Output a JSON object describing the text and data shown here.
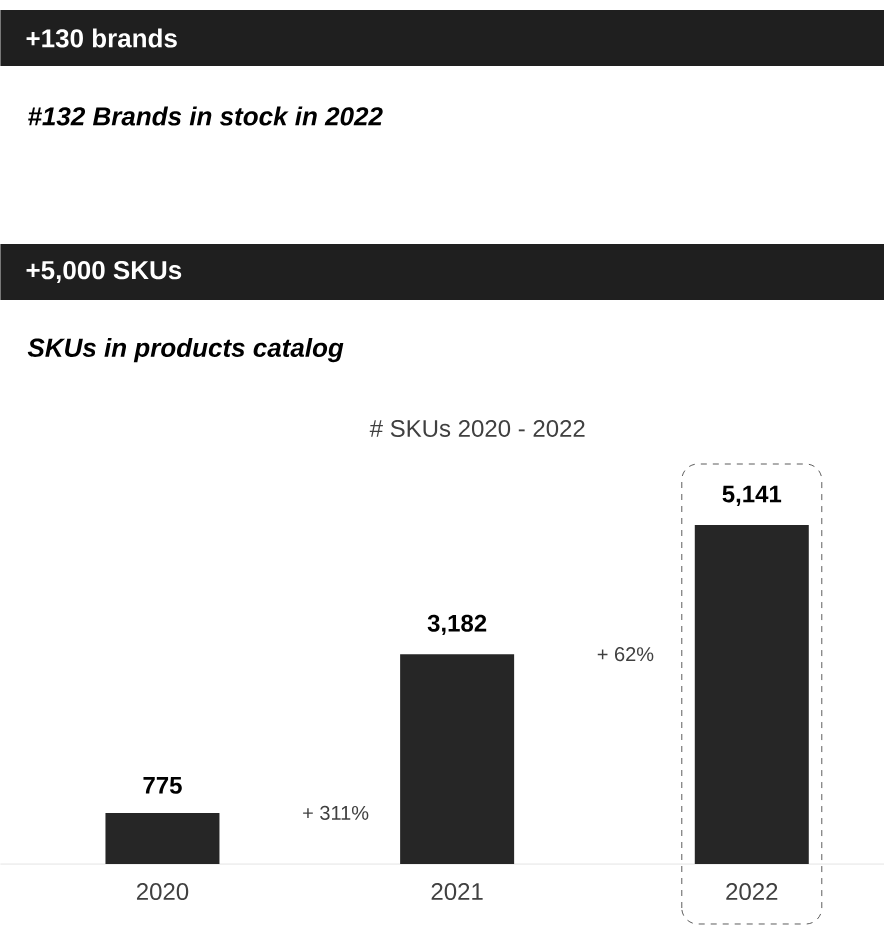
{
  "chart_data": {
    "type": "bar",
    "title": "# SKUs 2020 - 2022",
    "categories": [
      "2020",
      "2021",
      "2022"
    ],
    "values": [
      775,
      3182,
      5141
    ],
    "color": "#262626",
    "value_labels": [
      "775",
      "3,182",
      "5,141"
    ],
    "annotations": [
      "+130 brands",
      "#132 Brands in stock in 2022",
      "+5,000 SKUs",
      "SKUs in products catalog",
      "+ 311%",
      "+ 62%"
    ]
  }
}
